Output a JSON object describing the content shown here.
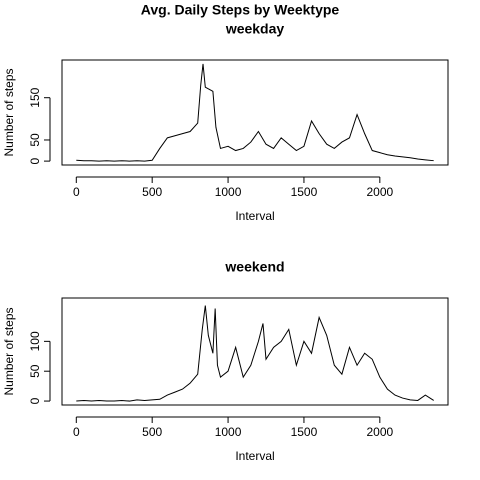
{
  "title": "Avg. Daily Steps by Weektype",
  "chart_data": [
    {
      "type": "line",
      "title": "weekday",
      "x_label": "Interval",
      "y_label": "Number of steps",
      "color": "#000000",
      "x": [
        0,
        50,
        100,
        150,
        200,
        250,
        300,
        350,
        400,
        450,
        500,
        550,
        600,
        650,
        700,
        750,
        800,
        820,
        835,
        850,
        900,
        920,
        950,
        1000,
        1050,
        1100,
        1150,
        1200,
        1250,
        1300,
        1350,
        1400,
        1450,
        1500,
        1550,
        1600,
        1650,
        1700,
        1750,
        1800,
        1850,
        1900,
        1950,
        2000,
        2050,
        2100,
        2150,
        2200,
        2250,
        2300,
        2355
      ],
      "values": [
        2,
        1,
        1,
        0,
        1,
        0,
        1,
        0,
        1,
        0,
        2,
        30,
        55,
        60,
        65,
        70,
        90,
        180,
        230,
        175,
        165,
        80,
        30,
        35,
        25,
        30,
        45,
        70,
        40,
        30,
        55,
        40,
        25,
        35,
        95,
        65,
        40,
        30,
        45,
        55,
        110,
        65,
        25,
        20,
        15,
        12,
        10,
        8,
        5,
        3,
        1
      ],
      "xlim": [
        -94.2,
        2449.2
      ],
      "xticks": [
        0,
        500,
        1000,
        1500,
        2000
      ],
      "ylim": [
        -9.2,
        239.2
      ],
      "yticks": [
        0,
        50,
        150
      ]
    },
    {
      "type": "line",
      "title": "weekend",
      "x_label": "Interval",
      "y_label": "Number of steps",
      "color": "#000000",
      "x": [
        0,
        50,
        100,
        150,
        200,
        250,
        300,
        350,
        400,
        450,
        500,
        550,
        600,
        650,
        700,
        750,
        800,
        830,
        850,
        870,
        900,
        915,
        930,
        950,
        1000,
        1050,
        1100,
        1150,
        1200,
        1230,
        1250,
        1300,
        1350,
        1400,
        1450,
        1500,
        1550,
        1600,
        1650,
        1700,
        1750,
        1800,
        1850,
        1900,
        1950,
        2000,
        2050,
        2100,
        2150,
        2200,
        2250,
        2300,
        2355
      ],
      "values": [
        0,
        1,
        0,
        1,
        0,
        0,
        1,
        0,
        2,
        1,
        2,
        3,
        10,
        15,
        20,
        30,
        45,
        120,
        160,
        110,
        80,
        155,
        60,
        40,
        50,
        90,
        40,
        60,
        100,
        130,
        70,
        90,
        100,
        120,
        60,
        100,
        80,
        140,
        110,
        60,
        45,
        90,
        60,
        80,
        70,
        40,
        20,
        10,
        5,
        2,
        1,
        10,
        1
      ],
      "xlim": [
        -94.2,
        2449.2
      ],
      "xticks": [
        0,
        500,
        1000,
        1500,
        2000
      ],
      "ylim": [
        -6.6,
        172.6
      ],
      "yticks": [
        0,
        50,
        100
      ]
    }
  ]
}
